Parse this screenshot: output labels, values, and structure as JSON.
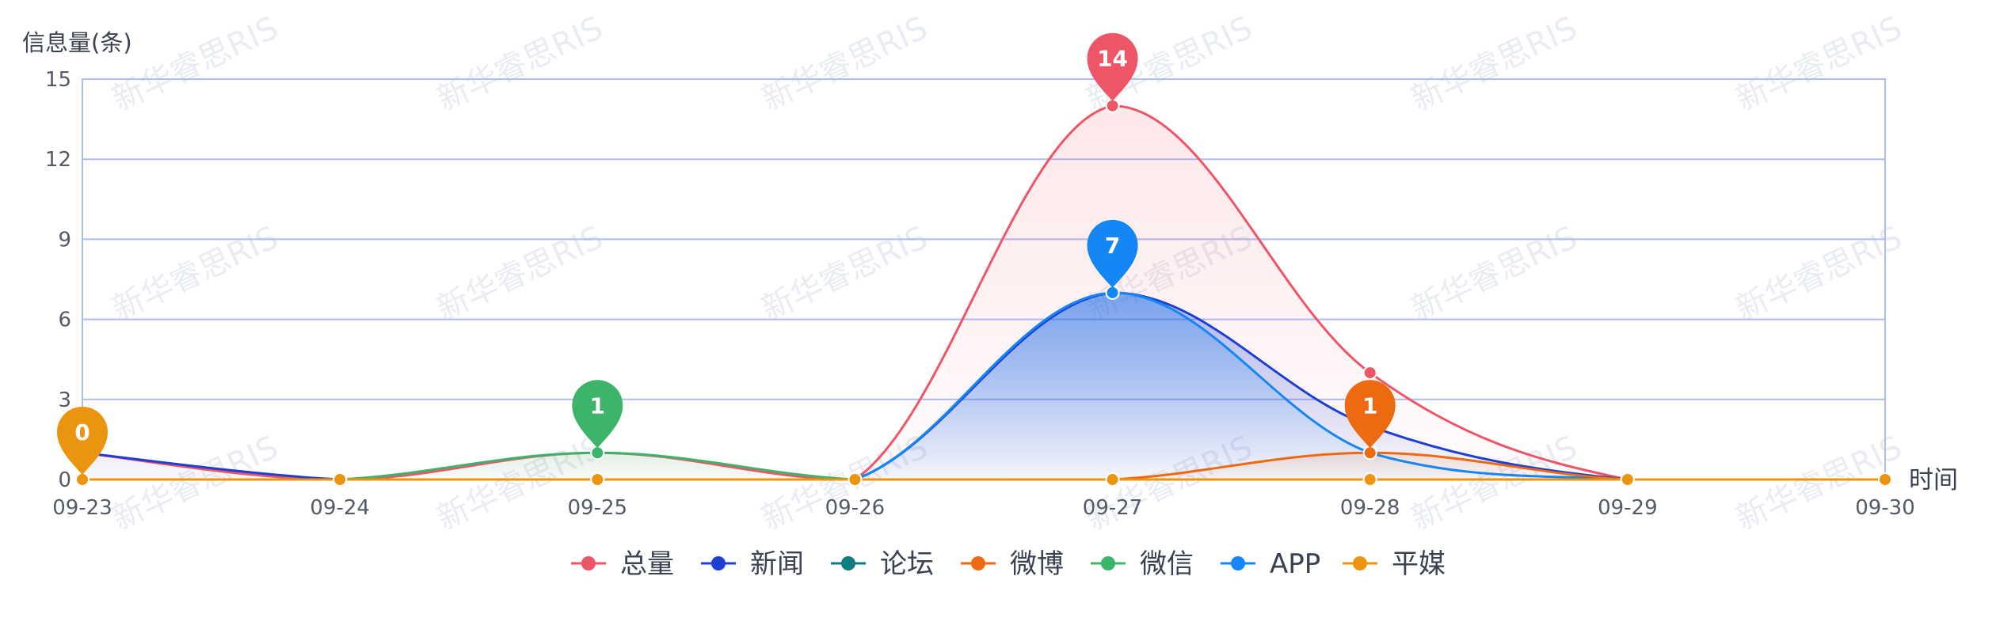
{
  "chart_data": {
    "type": "area",
    "ylabel": "信息量(条)",
    "xlabel": "时间",
    "categories": [
      "09-23",
      "09-24",
      "09-25",
      "09-26",
      "09-27",
      "09-28",
      "09-29",
      "09-30"
    ],
    "ylim": [
      0,
      15
    ],
    "yticks": [
      "0",
      "3",
      "6",
      "9",
      "12",
      "15"
    ],
    "grid": true,
    "legend_position": "bottom-center",
    "series": [
      {
        "name": "总量",
        "color": "#ee5566",
        "values": [
          1,
          0,
          1,
          0,
          14,
          4,
          0,
          0
        ],
        "area": true
      },
      {
        "name": "新闻",
        "color": "#1e3fd4",
        "values": [
          1,
          0,
          0,
          0,
          7,
          2,
          0,
          0
        ],
        "area": true
      },
      {
        "name": "论坛",
        "color": "#0f7b83",
        "values": [
          0,
          0,
          0,
          0,
          0,
          0,
          0,
          0
        ],
        "area": false
      },
      {
        "name": "微博",
        "color": "#ee6a10",
        "values": [
          0,
          0,
          0,
          0,
          0,
          1,
          0,
          0
        ],
        "area": true
      },
      {
        "name": "微信",
        "color": "#3cb46a",
        "values": [
          0,
          0,
          1,
          0,
          0,
          0,
          0,
          0
        ],
        "area": true
      },
      {
        "name": "APP",
        "color": "#1486f5",
        "values": [
          0,
          0,
          0,
          0,
          7,
          1,
          0,
          0
        ],
        "area": true
      },
      {
        "name": "平媒",
        "color": "#eb9410",
        "values": [
          0,
          0,
          0,
          0,
          0,
          0,
          0,
          0
        ],
        "area": false
      }
    ],
    "markers": [
      {
        "category": "09-23",
        "value": 0,
        "label": "0",
        "color": "#eb9410"
      },
      {
        "category": "09-25",
        "value": 1,
        "label": "1",
        "color": "#3cb46a"
      },
      {
        "category": "09-27",
        "value": 14,
        "label": "14",
        "color": "#ee5566"
      },
      {
        "category": "09-27",
        "value": 7,
        "label": "7",
        "color": "#1486f5"
      },
      {
        "category": "09-28",
        "value": 1,
        "label": "1",
        "color": "#ee6a10"
      }
    ]
  },
  "watermark": "新华睿思RIS"
}
